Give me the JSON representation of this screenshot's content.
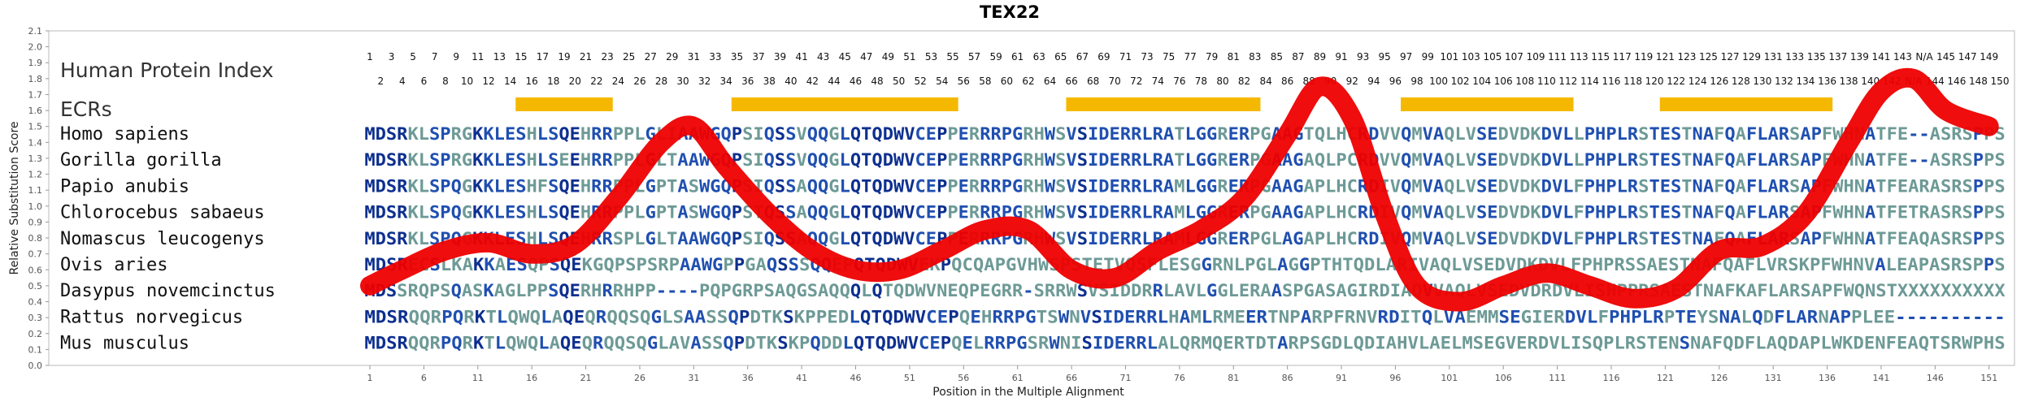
{
  "chart_data": {
    "type": "line",
    "title": "TEX22",
    "xlabel": "Position in the Multiple Alignment",
    "ylabel": "Relative Substitution Score",
    "ylim": [
      0,
      2.1
    ],
    "xlim": [
      1,
      152
    ],
    "y_ticks": [
      "0.0",
      "0.1",
      "0.2",
      "0.3",
      "0.4",
      "0.5",
      "0.6",
      "0.7",
      "0.8",
      "0.9",
      "1.0",
      "1.1",
      "1.2",
      "1.3",
      "1.4",
      "1.5",
      "1.6",
      "1.7",
      "1.8",
      "1.9",
      "2.0",
      "2.1"
    ],
    "x_ticks": [
      "1",
      "6",
      "11",
      "16",
      "21",
      "26",
      "31",
      "36",
      "41",
      "46",
      "51",
      "56",
      "61",
      "66",
      "71",
      "76",
      "81",
      "86",
      "91",
      "96",
      "101",
      "106",
      "111",
      "116",
      "121",
      "126",
      "131",
      "136",
      "141",
      "146",
      "151"
    ],
    "hpi_label": "Human Protein Index",
    "hpi_row1": [
      "1",
      "3",
      "5",
      "7",
      "9",
      "11",
      "13",
      "15",
      "17",
      "19",
      "21",
      "23",
      "25",
      "27",
      "29",
      "31",
      "33",
      "35",
      "37",
      "39",
      "41",
      "43",
      "45",
      "47",
      "49",
      "51",
      "53",
      "55",
      "57",
      "59",
      "61",
      "63",
      "65",
      "67",
      "69",
      "71",
      "73",
      "75",
      "77",
      "79",
      "81",
      "83",
      "85",
      "87",
      "89",
      "91",
      "93",
      "95",
      "97",
      "99",
      "101",
      "103",
      "105",
      "107",
      "109",
      "111",
      "113",
      "115",
      "117",
      "119",
      "121",
      "123",
      "125",
      "127",
      "129",
      "131",
      "133",
      "135",
      "137",
      "139",
      "141",
      "143",
      "N/A",
      "145",
      "147",
      "149"
    ],
    "hpi_row2": [
      "2",
      "4",
      "6",
      "8",
      "10",
      "12",
      "14",
      "16",
      "18",
      "20",
      "22",
      "24",
      "26",
      "28",
      "30",
      "32",
      "34",
      "36",
      "38",
      "40",
      "42",
      "44",
      "46",
      "48",
      "50",
      "52",
      "54",
      "56",
      "58",
      "60",
      "62",
      "64",
      "66",
      "68",
      "70",
      "72",
      "74",
      "76",
      "78",
      "80",
      "82",
      "84",
      "86",
      "88",
      "90",
      "92",
      "94",
      "96",
      "98",
      "100",
      "102",
      "104",
      "106",
      "108",
      "110",
      "112",
      "114",
      "116",
      "118",
      "120",
      "122",
      "124",
      "126",
      "128",
      "130",
      "132",
      "134",
      "136",
      "138",
      "140",
      "142",
      "N/A",
      "144",
      "146",
      "148",
      "150"
    ],
    "ecr_label": "ECRs",
    "ecr_color": "#f5b800",
    "ecr_ranges": [
      [
        15,
        23
      ],
      [
        35,
        55
      ],
      [
        66,
        83
      ],
      [
        97,
        112
      ],
      [
        121,
        136
      ]
    ],
    "curve_color": "#ee0000",
    "species": [
      "Homo sapiens",
      "Gorilla gorilla",
      "Papio anubis",
      "Chlorocebus sabaeus",
      "Nomascus leucogenys",
      "Ovis aries",
      "Dasypus novemcinctus",
      "Rattus norvegicus",
      "Mus musculus"
    ],
    "sequences": [
      "MDSRKLSPRGKKLESHLSQEHRRPPLGLIAAWGQPSIQSSVQQGLQTQDWVCEPPERRRPGRHWSVSIDERRLRATLGGRERPGAAGTQLHCRDVVQMVAQLVSEDVDKDVLLPHPLRSTESTNAFQAFLARSAPFWHNATFE--ASRSPPS",
      "MDSRKLSPRGKKLESHLSEEHRRPPLGLTAAWGQPSIQSSVQQGLQTQDWVCEPPERRRPGRHWSVSIDERRLRATLGGRERPGAAGAQLPCRDVVQMVAQLVSEDVDKDVLLPHPLRSTESTNAFQAFLARSAPFWHNATFE--ASRSPPS",
      "MDSRKLSPQGKKLESHFSQEHRRPPLGPTASWGQPSIQSSAQQGLQTQDWVCEPPERRRPGRHWSVSIDERRLRAMLGGRERPGAAGAPLHCRDIVQMVAQLVSEDVDKDVLFPHPLRSTESTNAFQAFLARSAPFWHNATFEARASRSPPS",
      "MDSRKLSPQGKKLESHLSQEHRRPPLGPTASWGQPSTQSSAQQGLQTQDWVCEPPERRRPGRHWSVSIDERRLRAMLGGRERPGAAGAPLHCRDIVQMVAQLVSEDVDKDVLFPHPLRSTESTNAFQAFLARSAPFWHNATFETRASRSPPS",
      "MDSRKLSPQGKKLESHLSQEHRRSPLGLTAAWGQPSIQSSAQQGLQTQDWVCEPPERRRPGRHWSVSIDERRLRAMLGGRERPGLAGAPLHCRDIVQMVAQLVSEDVDKDVLFPHPLRSTESTNAFQAFLARSAPFWHNATFEAQASRSPPS",
      "MDSRECSLKAKKAESQPSQEKGQPSPSRPAAWGPPGAQSSSQQEPQTQDWVEKPQCQAPGVHWSPSTETVQSFLESGGRNLPGLAGGPTHTQDLARIVAQLVSEDVDKDVLFPHPRSSAESTNAFQAFLVRSKPFWHNVALEAPASRSPPS",
      "MDSSRQPSQASKAGLPPSQERHRRHPP----PQPGRPSAQGSAQQQLQTQDWVNEQPEGRR-SRRWSVSIDDRRLAVLGGLERAASPGASAGIRDIAQVVAQLVSEDVDRDVLISHPPRSAESTNAFKAFLARSAPFWQNSTXXXXXXXXXX",
      "MDSRQQRPQRKTLQWQLAQEQRQQSQGLSAASSQPDTKSKPPEDLQTQDWVCEPQEHRRPGTSWNVSIDERRLHAMLRMEERTNPARPFRNVRDITQLVAEMMSEGIERDVLFPHPLRPTEYSNALQDFLARNAPPLEE----------",
      "MDSRQQRPQRKTLQWQLAQEQRQQSQGLAVASSQPDTKSKPQDDLQTQDWVCEPQELRRPGSRWNISIDERRLALQRMQERTDTARPSGDLQDIAHVLAELMSEGVERDVLISQPLRSTENSNAFQDFLAQDAPLWKDENFEAQTSRWPHS"
    ],
    "curves": [
      {
        "x": [
          1,
          4,
          8,
          12,
          16,
          20,
          24,
          28,
          31,
          34,
          38,
          42,
          46,
          50,
          54,
          58,
          62,
          66,
          70,
          74,
          78,
          82,
          86,
          89,
          92,
          95,
          98,
          102,
          106,
          110,
          114,
          118,
          122,
          126,
          130,
          134,
          138,
          141,
          144,
          147,
          151
        ],
        "y": [
          0.5,
          0.6,
          0.72,
          0.77,
          0.7,
          0.76,
          1.05,
          1.4,
          1.5,
          1.25,
          0.95,
          0.72,
          0.6,
          0.6,
          0.72,
          0.85,
          0.85,
          0.6,
          0.55,
          0.72,
          0.85,
          1.05,
          1.45,
          1.75,
          1.55,
          0.95,
          0.5,
          0.4,
          0.5,
          0.58,
          0.5,
          0.42,
          0.48,
          0.72,
          0.75,
          0.95,
          1.4,
          1.72,
          1.8,
          1.6,
          1.5
        ]
      }
    ]
  }
}
